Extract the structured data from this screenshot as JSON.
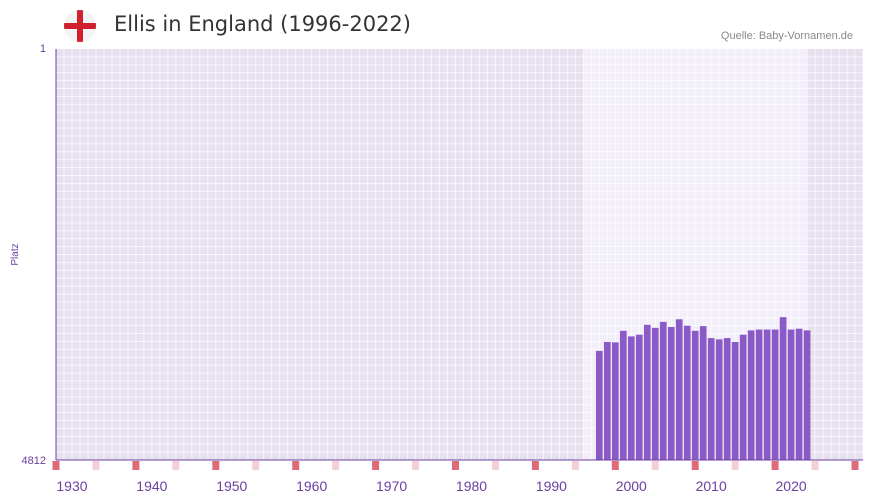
{
  "header": {
    "title": "Ellis in England (1996-2022)",
    "source": "Quelle: Baby-Vornamen.de",
    "flag_icon": "england-flag-icon"
  },
  "colors": {
    "bar": "#8a5ac6",
    "axis": "#6b3fa0",
    "plot_bg": "#e6e0ef",
    "highlight_bg": "#f2eefa",
    "tick_strong": "#e06b78",
    "tick_light": "#f4cfd4"
  },
  "chart_data": {
    "type": "bar",
    "title": "Ellis in England (1996-2022)",
    "ylabel": "Platz",
    "xlabel": "",
    "y_axis_inverted": true,
    "ylim": [
      1,
      4812
    ],
    "y_ticks": [
      "1",
      "4812"
    ],
    "xlim": [
      1928,
      2029
    ],
    "x_ticks": [
      "1930",
      "1940",
      "1950",
      "1960",
      "1970",
      "1980",
      "1990",
      "2000",
      "2010",
      "2020"
    ],
    "highlight_range": [
      1994,
      2022
    ],
    "categories": [
      1996,
      1997,
      1998,
      1999,
      2000,
      2001,
      2002,
      2003,
      2004,
      2005,
      2006,
      2007,
      2008,
      2009,
      2010,
      2011,
      2012,
      2013,
      2014,
      2015,
      2016,
      2017,
      2018,
      2019,
      2020,
      2021,
      2022
    ],
    "values": [
      3535,
      3430,
      3435,
      3300,
      3365,
      3345,
      3230,
      3265,
      3195,
      3255,
      3165,
      3240,
      3300,
      3245,
      3385,
      3400,
      3385,
      3430,
      3345,
      3295,
      3285,
      3285,
      3285,
      3140,
      3285,
      3275,
      3295
    ]
  }
}
